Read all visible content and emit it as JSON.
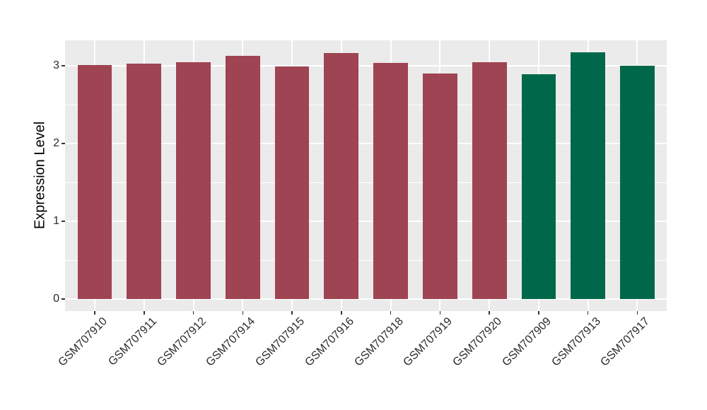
{
  "chart_data": {
    "type": "bar",
    "title": "",
    "xlabel": "",
    "ylabel": "Expression Level",
    "categories": [
      "GSM707910",
      "GSM707911",
      "GSM707912",
      "GSM707914",
      "GSM707915",
      "GSM707916",
      "GSM707918",
      "GSM707919",
      "GSM707920",
      "GSM707909",
      "GSM707913",
      "GSM707917"
    ],
    "values": [
      3.01,
      3.03,
      3.05,
      3.13,
      2.99,
      3.16,
      3.04,
      2.9,
      3.05,
      2.89,
      3.17,
      3.0
    ],
    "bar_colors": [
      "#9F4452",
      "#9F4452",
      "#9F4452",
      "#9F4452",
      "#9F4452",
      "#9F4452",
      "#9F4452",
      "#9F4452",
      "#9F4452",
      "#00684A",
      "#00684A",
      "#00684A"
    ],
    "palette": {
      "group_red": "#9F4452",
      "group_green": "#00684A"
    },
    "yticks": [
      0,
      1,
      2,
      3
    ],
    "yticks_minor": [
      0.5,
      1.5,
      2.5
    ],
    "ylim": [
      -0.16,
      3.33
    ],
    "grid": "on",
    "legend_position": "none",
    "panel_bg": "#EBEBEB",
    "grid_color": "#FFFFFF",
    "tick_color": "#333333",
    "axis_text_color": "#2b2b2b"
  }
}
